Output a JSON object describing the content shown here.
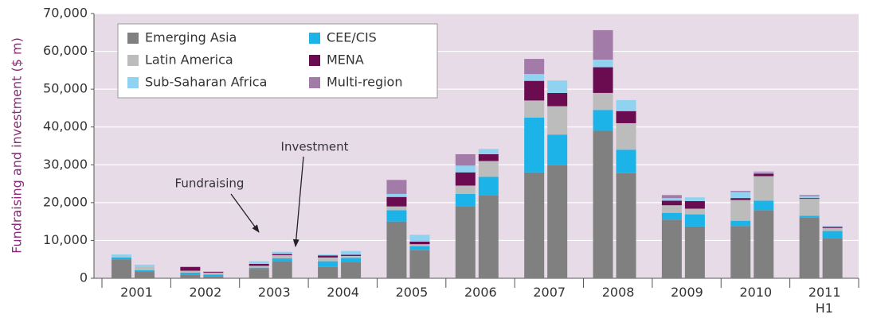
{
  "chart_data": {
    "type": "grouped-stacked-bar",
    "y_label": "Fundraising and investment ($ m)",
    "categories": [
      "2001",
      "2002",
      "2003",
      "2004",
      "2005",
      "2006",
      "2007",
      "2008",
      "2009",
      "2010",
      "2011 H1"
    ],
    "ylim": [
      0,
      70000
    ],
    "yticks": [
      0,
      {
        "value": 10000,
        "label": "10,000"
      },
      {
        "value": 20000,
        "label": "20,000"
      },
      {
        "value": 30000,
        "label": "30,000"
      },
      {
        "value": 40000,
        "label": "40,000"
      },
      {
        "value": 50000,
        "label": "50,000"
      },
      {
        "value": 60000,
        "label": "60,000"
      },
      {
        "value": 70000,
        "label": "70,000"
      }
    ],
    "grid": true,
    "legend": "upper left",
    "series": [
      {
        "name": "Emerging Asia",
        "color": "#808080",
        "fundraising": [
          5000,
          1000,
          2500,
          3000,
          15000,
          19000,
          28000,
          39000,
          15500,
          13800,
          16000
        ],
        "investment": [
          1800,
          500,
          4500,
          4200,
          7500,
          22000,
          30000,
          27800,
          13700,
          18000,
          10500
        ]
      },
      {
        "name": "CEE/CIS",
        "color": "#1cb3e8",
        "fundraising": [
          500,
          500,
          300,
          1500,
          3000,
          3300,
          14500,
          5500,
          1800,
          1400,
          500
        ],
        "investment": [
          300,
          500,
          800,
          1200,
          1000,
          4800,
          8000,
          6200,
          3200,
          2500,
          2000
        ]
      },
      {
        "name": "Latin America",
        "color": "#bcbcbc",
        "fundraising": [
          300,
          500,
          500,
          1000,
          1000,
          2200,
          4500,
          4500,
          2000,
          5500,
          4500
        ],
        "investment": [
          1000,
          500,
          800,
          500,
          500,
          4200,
          7500,
          7000,
          1500,
          6500,
          800
        ]
      },
      {
        "name": "MENA",
        "color": "#6b0b50",
        "fundraising": [
          0,
          1000,
          500,
          500,
          2500,
          3500,
          5200,
          6800,
          1200,
          500,
          200
        ],
        "investment": [
          0,
          200,
          300,
          300,
          700,
          1800,
          3500,
          3200,
          2000,
          700,
          300
        ]
      },
      {
        "name": "Sub-Saharan Africa",
        "color": "#8fd3f1",
        "fundraising": [
          500,
          0,
          700,
          300,
          800,
          1800,
          1800,
          2000,
          700,
          1600,
          500
        ],
        "investment": [
          500,
          200,
          600,
          1000,
          1800,
          1400,
          3300,
          2900,
          1000,
          300,
          200
        ]
      },
      {
        "name": "Multi-region",
        "color": "#a27ba9",
        "fundraising": [
          0,
          0,
          0,
          0,
          3700,
          3000,
          4000,
          7800,
          800,
          300,
          300
        ],
        "investment": [
          0,
          0,
          0,
          0,
          0,
          0,
          0,
          0,
          0,
          200,
          0
        ]
      }
    ],
    "annotations": [
      "Fundraising",
      "Investment"
    ]
  }
}
